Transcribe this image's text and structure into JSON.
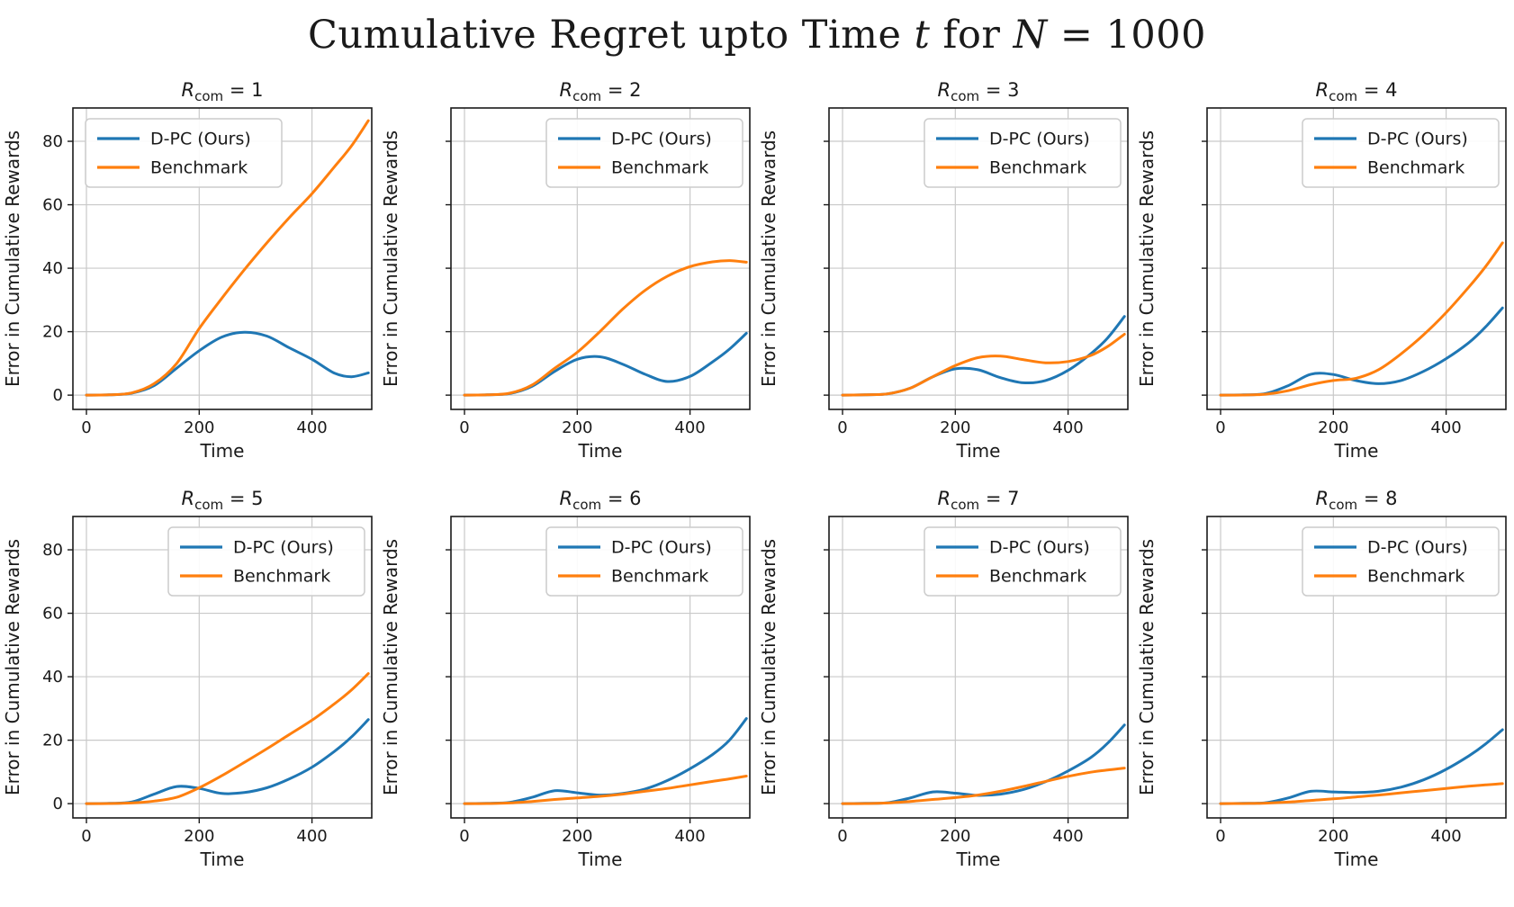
{
  "figure_title": {
    "text": "Cumulative Regret upto Time t for N = 1000",
    "prefix": "Cumulative Regret upto Time ",
    "var1": "t",
    "mid": " for ",
    "var2": "N",
    "suffix": " = 1000"
  },
  "colors": {
    "dpc": "#1f77b4",
    "benchmark": "#ff7f0e",
    "grid": "#c9c9c9",
    "spine": "#1a1a1a",
    "legend_border": "#cccccc"
  },
  "legend_labels": [
    "D-PC (Ours)",
    "Benchmark"
  ],
  "axis_labels": {
    "x": "Time",
    "y": "Error in Cumulative Rewards"
  },
  "chart_data": [
    {
      "type": "line",
      "title": "R_com = 1",
      "title_parts": {
        "sym": "R",
        "sub": "com",
        "rest": " = 1"
      },
      "xlabel": "Time",
      "ylabel": "Error in Cumulative Rewards",
      "xticks": [
        0,
        200,
        400
      ],
      "yticks": [
        0,
        20,
        40,
        60,
        80
      ],
      "xlim": [
        -24,
        506
      ],
      "ylim": [
        -4.5,
        90.5
      ],
      "grid": true,
      "show_ytick_labels": true,
      "legend_pos": "upper-left",
      "x": [
        0,
        40,
        80,
        120,
        160,
        200,
        240,
        280,
        320,
        360,
        400,
        440,
        470,
        500
      ],
      "series": [
        {
          "name": "D-PC (Ours)",
          "color": "#1f77b4",
          "values": [
            0,
            0.1,
            0.6,
            3.0,
            8.5,
            14.0,
            18.3,
            19.8,
            18.6,
            14.9,
            11.3,
            6.9,
            5.8,
            7.0
          ]
        },
        {
          "name": "Benchmark",
          "color": "#ff7f0e",
          "values": [
            0,
            0.1,
            0.7,
            3.6,
            10.0,
            21.0,
            30.5,
            39.5,
            48.0,
            56.0,
            63.5,
            72.0,
            78.5,
            86.5
          ]
        }
      ]
    },
    {
      "type": "line",
      "title": "R_com = 2",
      "title_parts": {
        "sym": "R",
        "sub": "com",
        "rest": " = 2"
      },
      "xlabel": "Time",
      "ylabel": "Error in Cumulative Rewards",
      "xticks": [
        0,
        200,
        400
      ],
      "yticks": [
        0,
        20,
        40,
        60,
        80
      ],
      "xlim": [
        -24,
        506
      ],
      "ylim": [
        -4.5,
        90.5
      ],
      "grid": true,
      "show_ytick_labels": false,
      "legend_pos": "upper-right",
      "x": [
        0,
        40,
        80,
        120,
        160,
        200,
        240,
        280,
        320,
        360,
        400,
        440,
        470,
        500
      ],
      "series": [
        {
          "name": "D-PC (Ours)",
          "color": "#1f77b4",
          "values": [
            0,
            0.1,
            0.5,
            2.8,
            7.5,
            11.3,
            12.1,
            9.8,
            6.6,
            4.3,
            5.9,
            10.5,
            14.5,
            19.5
          ]
        },
        {
          "name": "Benchmark",
          "color": "#ff7f0e",
          "values": [
            0,
            0.1,
            0.6,
            3.2,
            8.5,
            13.5,
            20.0,
            27.0,
            33.0,
            37.5,
            40.5,
            42.0,
            42.4,
            41.9
          ]
        }
      ]
    },
    {
      "type": "line",
      "title": "R_com = 3",
      "title_parts": {
        "sym": "R",
        "sub": "com",
        "rest": " = 3"
      },
      "xlabel": "Time",
      "ylabel": "Error in Cumulative Rewards",
      "xticks": [
        0,
        200,
        400
      ],
      "yticks": [
        0,
        20,
        40,
        60,
        80
      ],
      "xlim": [
        -24,
        506
      ],
      "ylim": [
        -4.5,
        90.5
      ],
      "grid": true,
      "show_ytick_labels": false,
      "legend_pos": "upper-right",
      "x": [
        0,
        40,
        80,
        120,
        160,
        200,
        240,
        280,
        320,
        360,
        400,
        440,
        470,
        500
      ],
      "series": [
        {
          "name": "D-PC (Ours)",
          "color": "#1f77b4",
          "values": [
            0,
            0.1,
            0.4,
            2.2,
            5.8,
            8.3,
            8.0,
            5.5,
            3.9,
            4.6,
            7.8,
            13.0,
            18.0,
            24.8
          ]
        },
        {
          "name": "Benchmark",
          "color": "#ff7f0e",
          "values": [
            0,
            0.1,
            0.4,
            2.2,
            5.8,
            9.3,
            11.8,
            12.3,
            11.2,
            10.2,
            10.6,
            12.5,
            15.3,
            19.2
          ]
        }
      ]
    },
    {
      "type": "line",
      "title": "R_com = 4",
      "title_parts": {
        "sym": "R",
        "sub": "com",
        "rest": " = 4"
      },
      "xlabel": "Time",
      "ylabel": "Error in Cumulative Rewards",
      "xticks": [
        0,
        200,
        400
      ],
      "yticks": [
        0,
        20,
        40,
        60,
        80
      ],
      "xlim": [
        -24,
        506
      ],
      "ylim": [
        -4.5,
        90.5
      ],
      "grid": true,
      "show_ytick_labels": false,
      "legend_pos": "upper-right",
      "x": [
        0,
        40,
        80,
        120,
        160,
        200,
        240,
        280,
        320,
        360,
        400,
        440,
        470,
        500
      ],
      "series": [
        {
          "name": "D-PC (Ours)",
          "color": "#1f77b4",
          "values": [
            0,
            0.1,
            0.5,
            3.0,
            6.6,
            6.5,
            4.6,
            3.6,
            4.6,
            7.5,
            11.5,
            16.5,
            21.5,
            27.5
          ]
        },
        {
          "name": "Benchmark",
          "color": "#ff7f0e",
          "values": [
            0,
            0.05,
            0.3,
            1.4,
            3.3,
            4.6,
            5.3,
            8.0,
            13.0,
            19.0,
            26.0,
            34.0,
            40.5,
            48.0
          ]
        }
      ]
    },
    {
      "type": "line",
      "title": "R_com = 5",
      "title_parts": {
        "sym": "R",
        "sub": "com",
        "rest": " = 5"
      },
      "xlabel": "Time",
      "ylabel": "Error in Cumulative Rewards",
      "xticks": [
        0,
        200,
        400
      ],
      "yticks": [
        0,
        20,
        40,
        60,
        80
      ],
      "xlim": [
        -24,
        506
      ],
      "ylim": [
        -4.5,
        90.5
      ],
      "grid": true,
      "show_ytick_labels": true,
      "legend_pos": "upper-right",
      "x": [
        0,
        40,
        80,
        120,
        160,
        200,
        240,
        280,
        320,
        360,
        400,
        440,
        470,
        500
      ],
      "series": [
        {
          "name": "D-PC (Ours)",
          "color": "#1f77b4",
          "values": [
            0,
            0.1,
            0.5,
            3.0,
            5.4,
            4.8,
            3.2,
            3.5,
            5.0,
            7.8,
            11.5,
            16.5,
            21.0,
            26.5
          ]
        },
        {
          "name": "Benchmark",
          "color": "#ff7f0e",
          "values": [
            0,
            0.05,
            0.2,
            0.8,
            2.0,
            5.0,
            8.8,
            13.0,
            17.3,
            21.8,
            26.3,
            31.5,
            35.8,
            41.0
          ]
        }
      ]
    },
    {
      "type": "line",
      "title": "R_com = 6",
      "title_parts": {
        "sym": "R",
        "sub": "com",
        "rest": " = 6"
      },
      "xlabel": "Time",
      "ylabel": "Error in Cumulative Rewards",
      "xticks": [
        0,
        200,
        400
      ],
      "yticks": [
        0,
        20,
        40,
        60,
        80
      ],
      "xlim": [
        -24,
        506
      ],
      "ylim": [
        -4.5,
        90.5
      ],
      "grid": true,
      "show_ytick_labels": false,
      "legend_pos": "upper-right",
      "x": [
        0,
        40,
        80,
        120,
        160,
        200,
        240,
        280,
        320,
        360,
        400,
        440,
        470,
        500
      ],
      "series": [
        {
          "name": "D-PC (Ours)",
          "color": "#1f77b4",
          "values": [
            0,
            0.1,
            0.4,
            2.0,
            4.1,
            3.4,
            2.7,
            3.2,
            4.6,
            7.3,
            11.0,
            15.5,
            20.0,
            26.8
          ]
        },
        {
          "name": "Benchmark",
          "color": "#ff7f0e",
          "values": [
            0,
            0.05,
            0.2,
            0.7,
            1.3,
            1.8,
            2.3,
            3.0,
            3.9,
            4.8,
            5.9,
            7.0,
            7.8,
            8.7
          ]
        }
      ]
    },
    {
      "type": "line",
      "title": "R_com = 7",
      "title_parts": {
        "sym": "R",
        "sub": "com",
        "rest": " = 7"
      },
      "xlabel": "Time",
      "ylabel": "Error in Cumulative Rewards",
      "xticks": [
        0,
        200,
        400
      ],
      "yticks": [
        0,
        20,
        40,
        60,
        80
      ],
      "xlim": [
        -24,
        506
      ],
      "ylim": [
        -4.5,
        90.5
      ],
      "grid": true,
      "show_ytick_labels": false,
      "legend_pos": "upper-right",
      "x": [
        0,
        40,
        80,
        120,
        160,
        200,
        240,
        280,
        320,
        360,
        400,
        440,
        470,
        500
      ],
      "series": [
        {
          "name": "D-PC (Ours)",
          "color": "#1f77b4",
          "values": [
            0,
            0.1,
            0.3,
            1.8,
            3.7,
            3.3,
            2.6,
            3.0,
            4.4,
            6.9,
            10.3,
            14.5,
            19.0,
            24.8
          ]
        },
        {
          "name": "Benchmark",
          "color": "#ff7f0e",
          "values": [
            0,
            0.05,
            0.2,
            0.7,
            1.3,
            1.9,
            2.7,
            3.9,
            5.4,
            7.0,
            8.6,
            9.9,
            10.6,
            11.2
          ]
        }
      ]
    },
    {
      "type": "line",
      "title": "R_com = 8",
      "title_parts": {
        "sym": "R",
        "sub": "com",
        "rest": " = 8"
      },
      "xlabel": "Time",
      "ylabel": "Error in Cumulative Rewards",
      "xticks": [
        0,
        200,
        400
      ],
      "yticks": [
        0,
        20,
        40,
        60,
        80
      ],
      "xlim": [
        -24,
        506
      ],
      "ylim": [
        -4.5,
        90.5
      ],
      "grid": true,
      "show_ytick_labels": false,
      "legend_pos": "upper-right",
      "x": [
        0,
        40,
        80,
        120,
        160,
        200,
        240,
        280,
        320,
        360,
        400,
        440,
        470,
        500
      ],
      "series": [
        {
          "name": "D-PC (Ours)",
          "color": "#1f77b4",
          "values": [
            0,
            0.1,
            0.3,
            1.8,
            3.9,
            3.7,
            3.5,
            3.9,
            5.2,
            7.5,
            10.8,
            15.0,
            18.8,
            23.3
          ]
        },
        {
          "name": "Benchmark",
          "color": "#ff7f0e",
          "values": [
            0,
            0.05,
            0.15,
            0.5,
            1.0,
            1.5,
            2.1,
            2.7,
            3.4,
            4.1,
            4.8,
            5.5,
            5.9,
            6.3
          ]
        }
      ]
    }
  ]
}
